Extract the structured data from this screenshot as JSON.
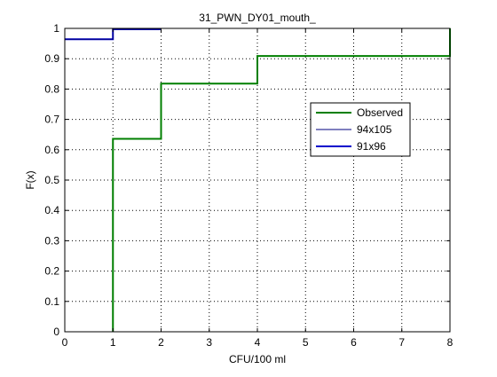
{
  "chart_data": {
    "type": "line",
    "title": "31_PWN_DY01_mouth_",
    "xlabel": "CFU/100 ml",
    "ylabel": "F(x)",
    "xlim": [
      0,
      8
    ],
    "ylim": [
      0,
      1
    ],
    "xticks": [
      "0",
      "1",
      "2",
      "3",
      "4",
      "5",
      "6",
      "7",
      "8"
    ],
    "yticks": [
      "0",
      "0.1",
      "0.2",
      "0.3",
      "0.4",
      "0.5",
      "0.6",
      "0.7",
      "0.8",
      "0.9",
      "1"
    ],
    "grid": true,
    "grid_style": "dotted",
    "legend_position": "right, upper-middle",
    "series": [
      {
        "name": "Observed",
        "color": "#007f00",
        "style": "step",
        "linewidth": "thick",
        "x": [
          1,
          1,
          2,
          2,
          4,
          4,
          8,
          8
        ],
        "y": [
          0,
          0.636,
          0.636,
          0.818,
          0.818,
          0.909,
          0.909,
          1
        ]
      },
      {
        "name": "94x105",
        "color": "#00007f",
        "style": "step",
        "linewidth": "thin",
        "x": [
          0,
          1,
          1,
          2
        ],
        "y": [
          0.964,
          0.964,
          0.997,
          0.997
        ]
      },
      {
        "name": "91x96",
        "color": "#0000cc",
        "style": "step",
        "linewidth": "thick",
        "x": [
          0,
          1,
          1,
          2
        ],
        "y": [
          0.964,
          0.964,
          0.997,
          0.997
        ]
      }
    ]
  }
}
